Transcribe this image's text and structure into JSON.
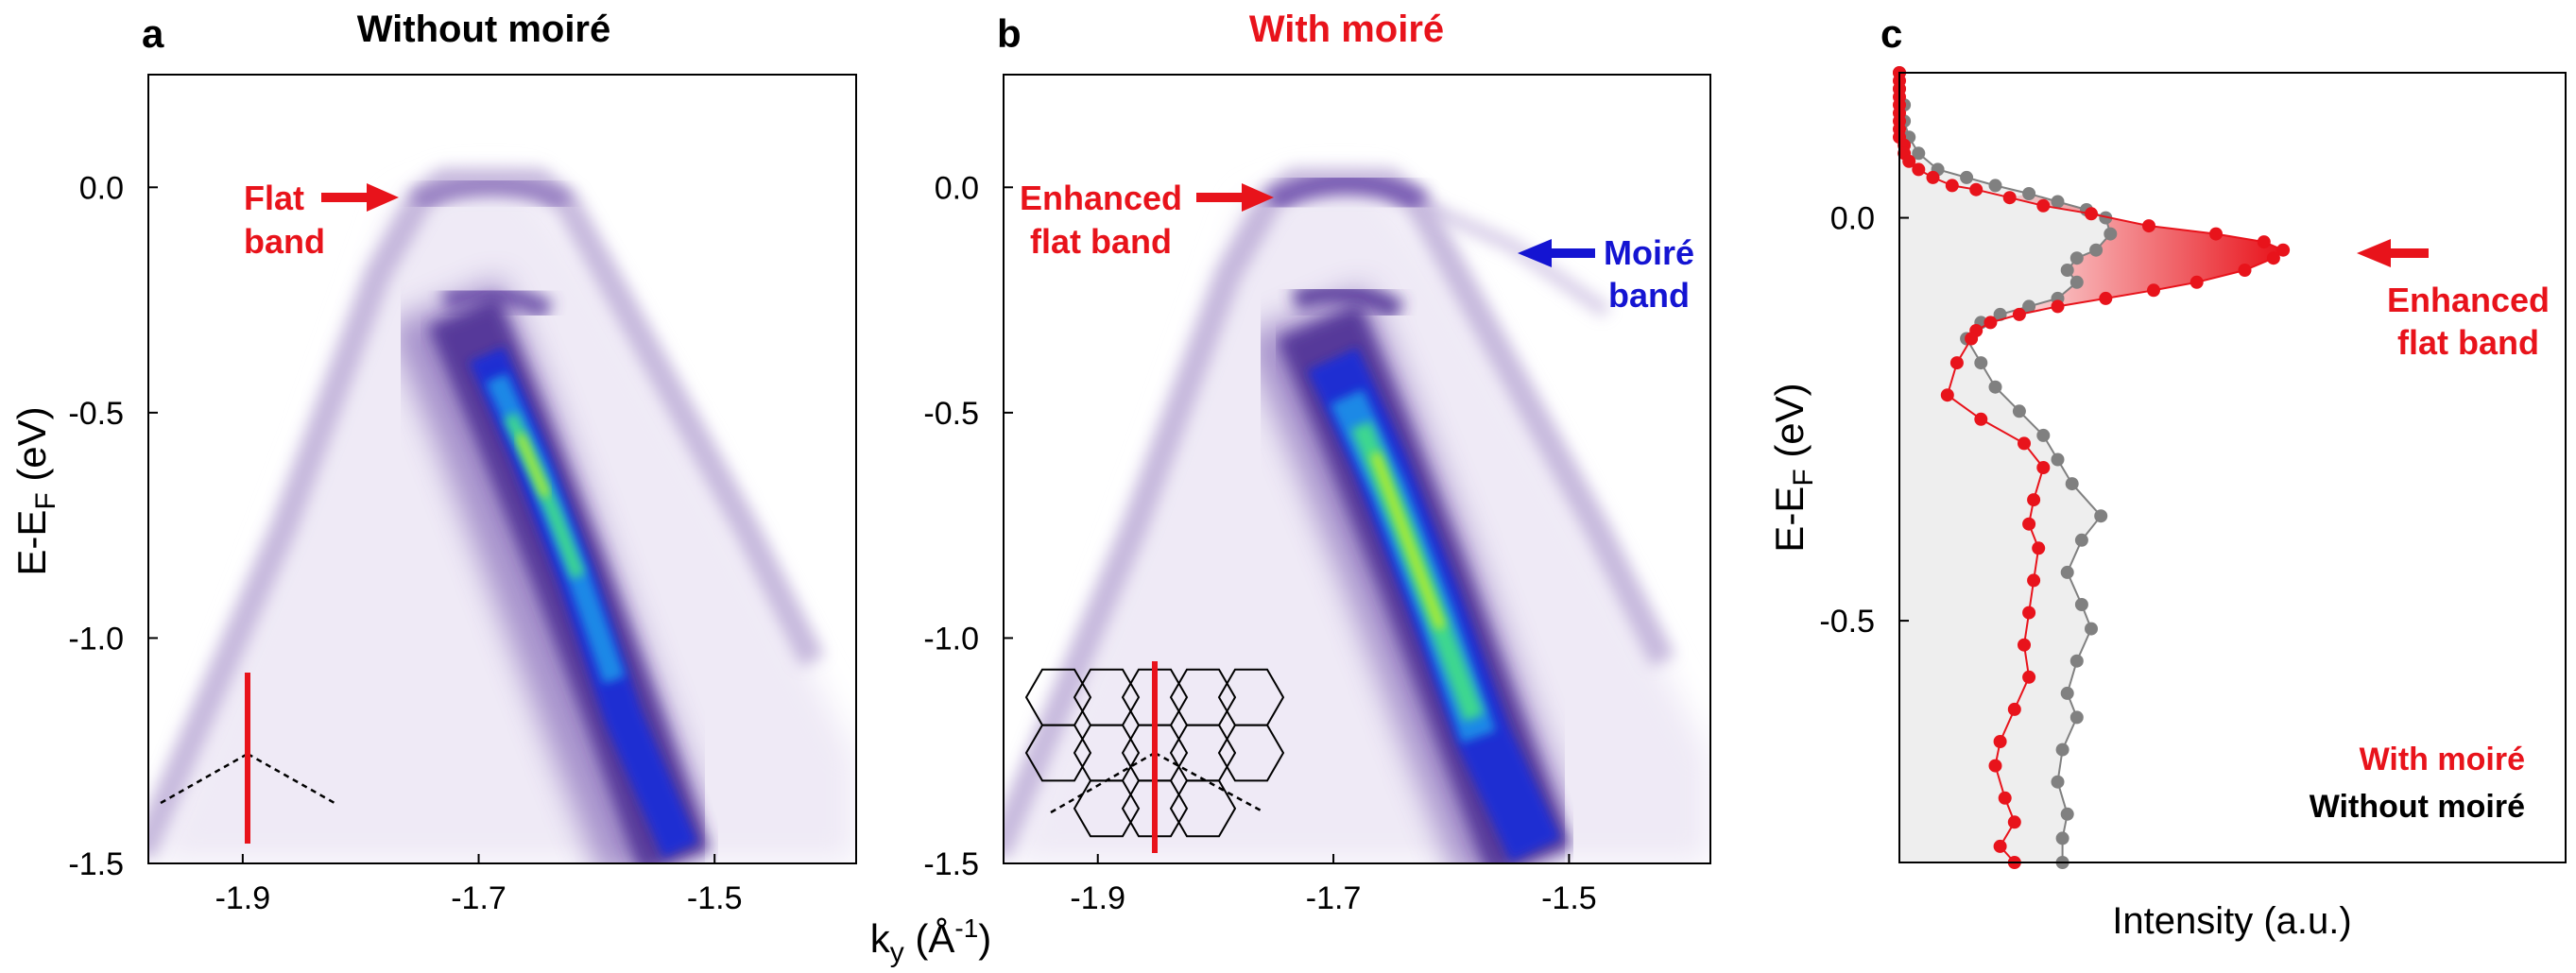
{
  "colors": {
    "red": "#e8131b",
    "blue": "#1414d2",
    "grey": "#808080",
    "black": "#000000",
    "colormap": [
      "#ffffff",
      "#e9e3f2",
      "#b7a4d4",
      "#7c5cb3",
      "#4a2b92",
      "#2d1878",
      "#1b2fd6",
      "#1d8ee8",
      "#3fdc8a",
      "#c6ee1f"
    ]
  },
  "panel_a": {
    "letter": "a",
    "title": "Without moiré",
    "annotation_line1": "Flat",
    "annotation_line2": "band"
  },
  "panel_b": {
    "letter": "b",
    "title": "With moiré",
    "annotation_flat_line1": "Enhanced",
    "annotation_flat_line2": "flat band",
    "annotation_moire_line1": "Moiré",
    "annotation_moire_line2": "band"
  },
  "panel_c": {
    "letter": "c",
    "annotation_line1": "Enhanced",
    "annotation_line2": "flat band",
    "legend_with": "With moiré",
    "legend_without": "Without moiré"
  },
  "chart_data": [
    {
      "type": "heatmap",
      "panel": "a",
      "title": "Without moiré",
      "xlabel": "",
      "ylabel": "E-E_F (eV)",
      "xlim": [
        -1.98,
        -1.38
      ],
      "ylim": [
        -1.5,
        0.25
      ],
      "x_ticks": [
        -1.9,
        -1.7,
        -1.5
      ],
      "x_tick_labels": [
        "-1.9",
        "-1.7",
        "-1.5"
      ],
      "y_ticks": [
        0.0,
        -0.5,
        -1.0,
        -1.5
      ],
      "y_tick_labels": [
        "0.0",
        "-0.5",
        "-1.0",
        "-1.5"
      ],
      "bands": {
        "flat_band_energy": 0.0,
        "main_band": [
          [
            -1.69,
            -0.38
          ],
          [
            -1.66,
            -0.55
          ],
          [
            -1.62,
            -0.75
          ],
          [
            -1.58,
            -1.0
          ],
          [
            -1.55,
            -1.25
          ],
          [
            -1.53,
            -1.5
          ]
        ]
      }
    },
    {
      "type": "heatmap",
      "panel": "b",
      "title": "With moiré",
      "xlabel": "k_y (Å^-1)",
      "ylabel": "",
      "xlim": [
        -1.98,
        -1.38
      ],
      "ylim": [
        -1.5,
        0.25
      ],
      "x_ticks": [
        -1.9,
        -1.7,
        -1.5
      ],
      "x_tick_labels": [
        "-1.9",
        "-1.7",
        "-1.5"
      ],
      "y_ticks": [
        0.0,
        -0.5,
        -1.0,
        -1.5
      ],
      "y_tick_labels": [
        "0.0",
        "-0.5",
        "-1.0",
        "-1.5"
      ],
      "bands": {
        "flat_band_energy": 0.0,
        "main_band": [
          [
            -1.69,
            -0.38
          ],
          [
            -1.66,
            -0.55
          ],
          [
            -1.62,
            -0.75
          ],
          [
            -1.58,
            -1.0
          ],
          [
            -1.55,
            -1.25
          ],
          [
            -1.53,
            -1.5
          ]
        ]
      }
    },
    {
      "type": "line",
      "panel": "c",
      "xlabel": "Intensity (a.u.)",
      "ylabel": "E-E_F (eV)",
      "ylim": [
        -0.8,
        0.18
      ],
      "y_ticks": [
        0.0,
        -0.5
      ],
      "y_tick_labels": [
        "0.0",
        "-0.5"
      ],
      "legend": "bottom-right",
      "series": [
        {
          "name": "With moiré",
          "color": "#e8131b",
          "points": [
            [
              0.0,
              0.18
            ],
            [
              0.0,
              0.17
            ],
            [
              0.0,
              0.16
            ],
            [
              0.0,
              0.15
            ],
            [
              0.0,
              0.14
            ],
            [
              0.0,
              0.13
            ],
            [
              0.0,
              0.12
            ],
            [
              0.0,
              0.11
            ],
            [
              0.0,
              0.1
            ],
            [
              0.01,
              0.09
            ],
            [
              0.01,
              0.08
            ],
            [
              0.02,
              0.07
            ],
            [
              0.04,
              0.06
            ],
            [
              0.07,
              0.05
            ],
            [
              0.11,
              0.04
            ],
            [
              0.16,
              0.035
            ],
            [
              0.23,
              0.025
            ],
            [
              0.3,
              0.015
            ],
            [
              0.4,
              0.005
            ],
            [
              0.52,
              -0.01
            ],
            [
              0.66,
              -0.02
            ],
            [
              0.76,
              -0.03
            ],
            [
              0.8,
              -0.04
            ],
            [
              0.78,
              -0.05
            ],
            [
              0.72,
              -0.065
            ],
            [
              0.62,
              -0.08
            ],
            [
              0.53,
              -0.09
            ],
            [
              0.43,
              -0.1
            ],
            [
              0.33,
              -0.11
            ],
            [
              0.25,
              -0.12
            ],
            [
              0.19,
              -0.13
            ],
            [
              0.16,
              -0.14
            ],
            [
              0.15,
              -0.15
            ],
            [
              0.12,
              -0.18
            ],
            [
              0.1,
              -0.22
            ],
            [
              0.17,
              -0.25
            ],
            [
              0.26,
              -0.28
            ],
            [
              0.3,
              -0.31
            ],
            [
              0.28,
              -0.35
            ],
            [
              0.27,
              -0.38
            ],
            [
              0.29,
              -0.41
            ],
            [
              0.28,
              -0.45
            ],
            [
              0.27,
              -0.49
            ],
            [
              0.26,
              -0.53
            ],
            [
              0.27,
              -0.57
            ],
            [
              0.24,
              -0.61
            ],
            [
              0.21,
              -0.65
            ],
            [
              0.2,
              -0.68
            ],
            [
              0.22,
              -0.72
            ],
            [
              0.24,
              -0.75
            ],
            [
              0.21,
              -0.78
            ],
            [
              0.24,
              -0.8
            ]
          ]
        },
        {
          "name": "Without moiré",
          "color": "#808080",
          "points": [
            [
              0.0,
              0.18
            ],
            [
              0.0,
              0.16
            ],
            [
              0.01,
              0.14
            ],
            [
              0.01,
              0.12
            ],
            [
              0.02,
              0.1
            ],
            [
              0.04,
              0.08
            ],
            [
              0.08,
              0.06
            ],
            [
              0.14,
              0.05
            ],
            [
              0.2,
              0.04
            ],
            [
              0.27,
              0.03
            ],
            [
              0.33,
              0.02
            ],
            [
              0.39,
              0.01
            ],
            [
              0.43,
              0.0
            ],
            [
              0.44,
              -0.02
            ],
            [
              0.41,
              -0.04
            ],
            [
              0.37,
              -0.05
            ],
            [
              0.35,
              -0.065
            ],
            [
              0.37,
              -0.08
            ],
            [
              0.33,
              -0.1
            ],
            [
              0.27,
              -0.11
            ],
            [
              0.21,
              -0.12
            ],
            [
              0.17,
              -0.13
            ],
            [
              0.14,
              -0.15
            ],
            [
              0.17,
              -0.18
            ],
            [
              0.2,
              -0.21
            ],
            [
              0.25,
              -0.24
            ],
            [
              0.3,
              -0.27
            ],
            [
              0.33,
              -0.3
            ],
            [
              0.36,
              -0.33
            ],
            [
              0.42,
              -0.37
            ],
            [
              0.38,
              -0.4
            ],
            [
              0.35,
              -0.44
            ],
            [
              0.38,
              -0.48
            ],
            [
              0.4,
              -0.51
            ],
            [
              0.37,
              -0.55
            ],
            [
              0.35,
              -0.59
            ],
            [
              0.37,
              -0.62
            ],
            [
              0.34,
              -0.66
            ],
            [
              0.33,
              -0.7
            ],
            [
              0.35,
              -0.74
            ],
            [
              0.34,
              -0.77
            ],
            [
              0.34,
              -0.8
            ]
          ]
        }
      ]
    }
  ]
}
